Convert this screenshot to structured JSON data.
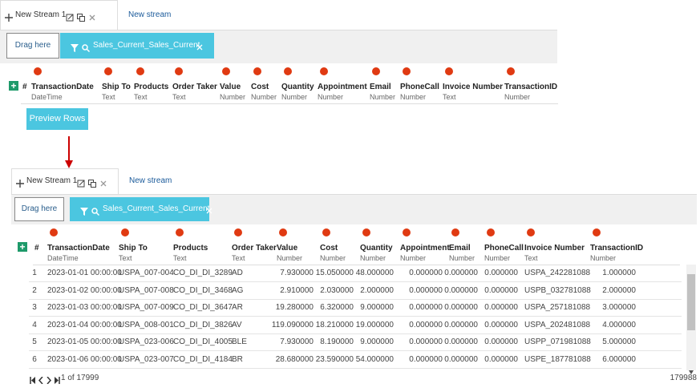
{
  "top": {
    "tabs": [
      "New Stream 1",
      "New stream"
    ],
    "drag": "Drag here",
    "filter": "Sales_Current_Sales_Current",
    "hash": "#",
    "columns": [
      {
        "name": "TransactionDate",
        "type": "DateTime"
      },
      {
        "name": "Ship To",
        "type": "Text"
      },
      {
        "name": "Products",
        "type": "Text"
      },
      {
        "name": "Order Taker",
        "type": "Text"
      },
      {
        "name": "Value",
        "type": "Number"
      },
      {
        "name": "Cost",
        "type": "Number"
      },
      {
        "name": "Quantity",
        "type": "Number"
      },
      {
        "name": "Appointment",
        "type": "Number"
      },
      {
        "name": "Email",
        "type": "Number"
      },
      {
        "name": "PhoneCall",
        "type": "Number"
      },
      {
        "name": "Invoice Number",
        "type": "Text"
      },
      {
        "name": "TransactionID",
        "type": "Number"
      }
    ],
    "button": "Preview Rows"
  },
  "bottom": {
    "tabs": [
      "New Stream 1",
      "New stream"
    ],
    "drag": "Drag here",
    "filter": "Sales_Current_Sales_Current",
    "hash": "#",
    "columns": [
      {
        "name": "TransactionDate",
        "type": "DateTime"
      },
      {
        "name": "Ship To",
        "type": "Text"
      },
      {
        "name": "Products",
        "type": "Text"
      },
      {
        "name": "Order Taker",
        "type": "Text"
      },
      {
        "name": "Value",
        "type": "Number"
      },
      {
        "name": "Cost",
        "type": "Number"
      },
      {
        "name": "Quantity",
        "type": "Number"
      },
      {
        "name": "Appointment",
        "type": "Number"
      },
      {
        "name": "Email",
        "type": "Number"
      },
      {
        "name": "PhoneCall",
        "type": "Number"
      },
      {
        "name": "Invoice Number",
        "type": "Text"
      },
      {
        "name": "TransactionID",
        "type": "Number"
      }
    ],
    "rows": [
      [
        "1",
        "2023-01-01 00:00:00",
        "USPA_007-004",
        "CO_DI_DI_3289",
        "AD",
        "7.930000",
        "15.050000",
        "48.000000",
        "0.000000",
        "0.000000",
        "0.000000",
        "USPA_242281088",
        "1.000000"
      ],
      [
        "2",
        "2023-01-02 00:00:00",
        "USPA_007-008",
        "CO_DI_DI_3468",
        "AG",
        "2.910000",
        "2.030000",
        "2.000000",
        "0.000000",
        "0.000000",
        "0.000000",
        "USPB_032781088",
        "2.000000"
      ],
      [
        "3",
        "2023-01-03 00:00:00",
        "USPA_007-009",
        "CO_DI_DI_3647",
        "AR",
        "19.280000",
        "6.320000",
        "9.000000",
        "0.000000",
        "0.000000",
        "0.000000",
        "USPA_257181088",
        "3.000000"
      ],
      [
        "4",
        "2023-01-04 00:00:00",
        "USPA_008-001",
        "CO_DI_DI_3826",
        "AV",
        "119.090000",
        "18.210000",
        "19.000000",
        "0.000000",
        "0.000000",
        "0.000000",
        "USPA_202481088",
        "4.000000"
      ],
      [
        "5",
        "2023-01-05 00:00:00",
        "USPA_023-006",
        "CO_DI_DI_4005",
        "BLE",
        "7.930000",
        "8.190000",
        "9.000000",
        "0.000000",
        "0.000000",
        "0.000000",
        "USPP_071981088",
        "5.000000"
      ],
      [
        "6",
        "2023-01-06 00:00:00",
        "USPA_023-007",
        "CO_DI_DI_4184",
        "BR",
        "28.680000",
        "23.590000",
        "54.000000",
        "0.000000",
        "0.000000",
        "0.000000",
        "USPE_187781088",
        "6.000000"
      ]
    ],
    "pager": "1 of 17999",
    "total": "179988"
  }
}
